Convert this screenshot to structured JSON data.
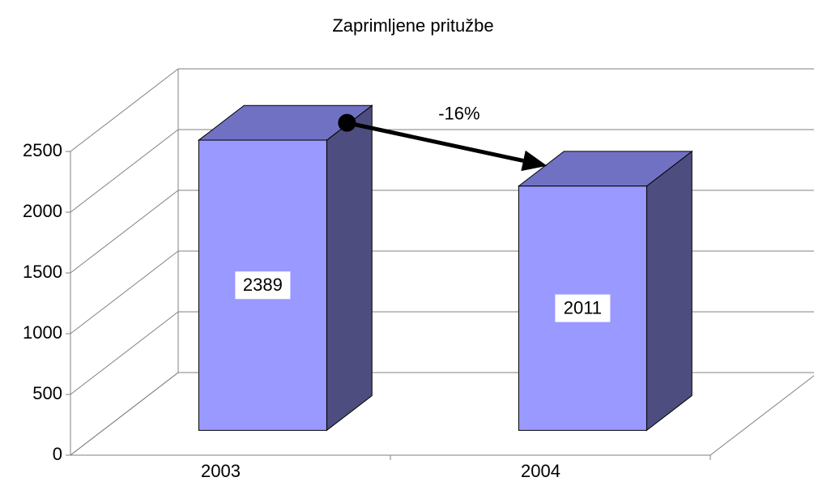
{
  "chart_data": {
    "type": "bar3d",
    "title": "Zaprimljene pritužbe",
    "categories": [
      "2003",
      "2004"
    ],
    "values": [
      2389,
      2011
    ],
    "colors": {
      "front": "#9999ff",
      "top": "#7171c4",
      "side": "#4d4d80"
    },
    "ylim": [
      0,
      2500
    ],
    "yticks": [
      0,
      500,
      1000,
      1500,
      2000,
      2500
    ],
    "grid": true,
    "annotation": "-16%"
  }
}
